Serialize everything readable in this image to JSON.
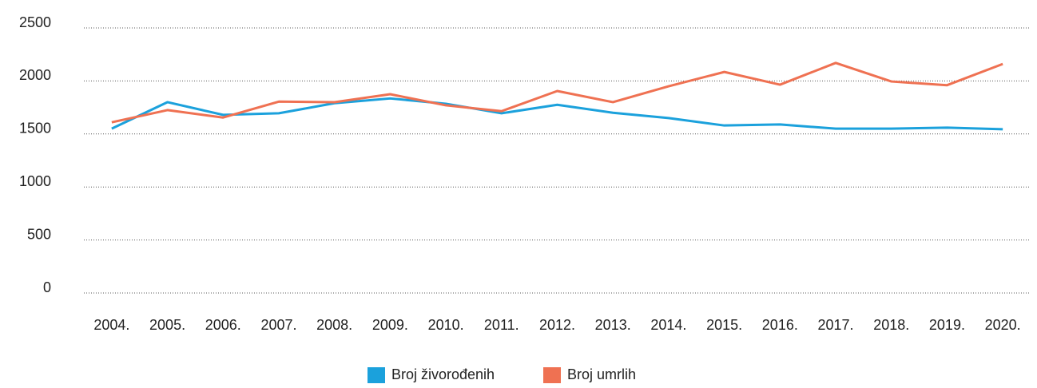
{
  "chart_data": {
    "type": "line",
    "categories": [
      "2004.",
      "2005.",
      "2006.",
      "2007.",
      "2008.",
      "2009.",
      "2010.",
      "2011.",
      "2012.",
      "2013.",
      "2014.",
      "2015.",
      "2016.",
      "2017.",
      "2018.",
      "2019.",
      "2020."
    ],
    "series": [
      {
        "name": "Broj živorođenih",
        "color": "#1ba1dc",
        "values": [
          1550,
          1800,
          1680,
          1695,
          1790,
          1835,
          1785,
          1695,
          1775,
          1700,
          1650,
          1580,
          1590,
          1550,
          1550,
          1560,
          1545
        ]
      },
      {
        "name": "Broj umrlih",
        "color": "#ef7152",
        "values": [
          1610,
          1725,
          1655,
          1805,
          1800,
          1875,
          1770,
          1715,
          1905,
          1800,
          1950,
          2085,
          1965,
          2170,
          1995,
          1960,
          2160
        ]
      }
    ],
    "ylim": [
      0,
      2500
    ],
    "yticks": [
      0,
      500,
      1000,
      1500,
      2000,
      2500
    ],
    "grid": true,
    "legend": "bottom"
  }
}
